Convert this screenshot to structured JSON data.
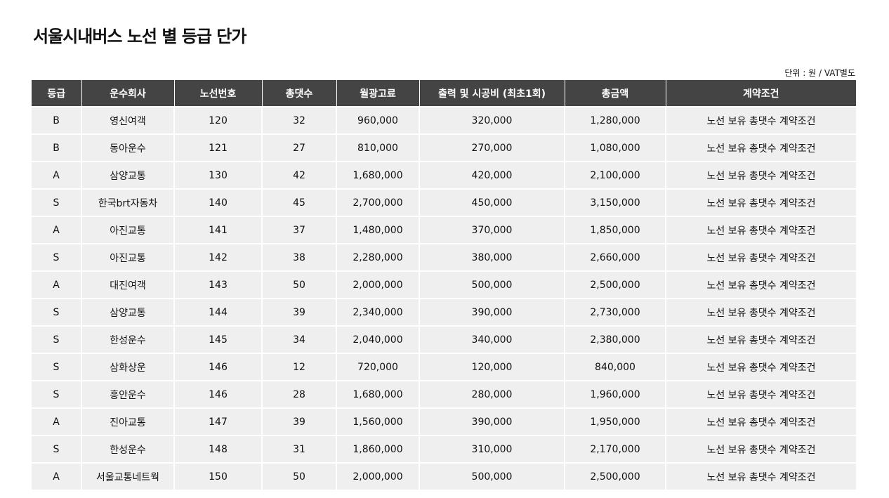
{
  "title": "서울시내버스 노선 별 등급 단가",
  "unit_note": "단위 : 원 / VAT별도",
  "table": {
    "headers": [
      "등급",
      "운수회사",
      "노선번호",
      "총댓수",
      "월광고료",
      "출력 및 시공비 (최초1회)",
      "총금액",
      "계약조건"
    ],
    "rows": [
      [
        "B",
        "영신여객",
        "120",
        "32",
        "960,000",
        "320,000",
        "1,280,000",
        "노선 보유 총댓수 계약조건"
      ],
      [
        "B",
        "동아운수",
        "121",
        "27",
        "810,000",
        "270,000",
        "1,080,000",
        "노선 보유 총댓수 계약조건"
      ],
      [
        "A",
        "삼양교통",
        "130",
        "42",
        "1,680,000",
        "420,000",
        "2,100,000",
        "노선 보유 총댓수 계약조건"
      ],
      [
        "S",
        "한국brt자동차",
        "140",
        "45",
        "2,700,000",
        "450,000",
        "3,150,000",
        "노선 보유 총댓수 계약조건"
      ],
      [
        "A",
        "아진교통",
        "141",
        "37",
        "1,480,000",
        "370,000",
        "1,850,000",
        "노선 보유 총댓수 계약조건"
      ],
      [
        "S",
        "아진교통",
        "142",
        "38",
        "2,280,000",
        "380,000",
        "2,660,000",
        "노선 보유 총댓수 계약조건"
      ],
      [
        "A",
        "대진여객",
        "143",
        "50",
        "2,000,000",
        "500,000",
        "2,500,000",
        "노선 보유 총댓수 계약조건"
      ],
      [
        "S",
        "삼양교통",
        "144",
        "39",
        "2,340,000",
        "390,000",
        "2,730,000",
        "노선 보유 총댓수 계약조건"
      ],
      [
        "S",
        "한성운수",
        "145",
        "34",
        "2,040,000",
        "340,000",
        "2,380,000",
        "노선 보유 총댓수 계약조건"
      ],
      [
        "S",
        "삼화상운",
        "146",
        "12",
        "720,000",
        "120,000",
        "840,000",
        "노선 보유 총댓수 계약조건"
      ],
      [
        "S",
        "흥안운수",
        "146",
        "28",
        "1,680,000",
        "280,000",
        "1,960,000",
        "노선 보유 총댓수 계약조건"
      ],
      [
        "A",
        "진아교통",
        "147",
        "39",
        "1,560,000",
        "390,000",
        "1,950,000",
        "노선 보유 총댓수 계약조건"
      ],
      [
        "S",
        "한성운수",
        "148",
        "31",
        "1,860,000",
        "310,000",
        "2,170,000",
        "노선 보유 총댓수 계약조건"
      ],
      [
        "A",
        "서울교통네트웍",
        "150",
        "50",
        "2,000,000",
        "500,000",
        "2,500,000",
        "노선 보유 총댓수 계약조건"
      ]
    ]
  },
  "colors": {
    "header_bg": "#444444",
    "cell_bg": "#efefef"
  }
}
